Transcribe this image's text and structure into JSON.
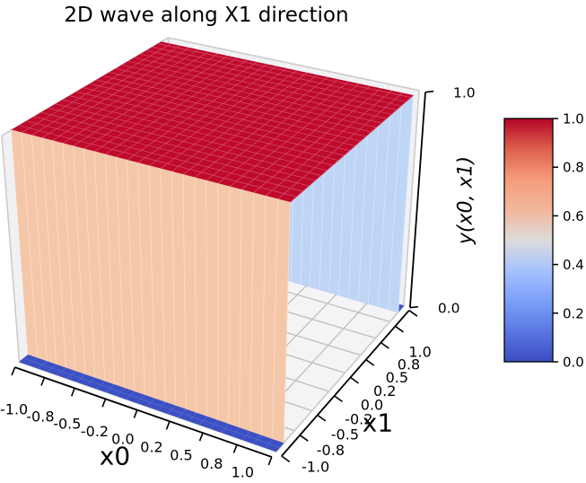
{
  "title": "2D wave along X1 direction",
  "chart_data": {
    "type": "surface",
    "title": "2D wave along X1 direction",
    "xlabel": "x0",
    "ylabel": "x1",
    "zlabel": "y(x0, x1)",
    "x_range": [
      -1.0,
      1.0
    ],
    "y_range": [
      -1.0,
      1.0
    ],
    "z_range": [
      0.0,
      1.0
    ],
    "x_ticks": {
      "positions": [
        -1,
        -0.75,
        -0.5,
        -0.25,
        0,
        0.25,
        0.5,
        0.75,
        1
      ],
      "labels": [
        "-1.0",
        "-0.8",
        "-0.5",
        "-0.2",
        "0.0",
        "0.2",
        "0.5",
        "0.8",
        "1.0"
      ]
    },
    "y_ticks": {
      "positions": [
        -1,
        -0.75,
        -0.5,
        -0.25,
        0,
        0.25,
        0.5,
        0.75,
        1
      ],
      "labels": [
        "-1.0",
        "-0.8",
        "-0.5",
        "-0.2",
        "0.0",
        "0.2",
        "0.5",
        "0.8",
        "1.0"
      ]
    },
    "z_ticks": {
      "positions": [
        0,
        1
      ],
      "labels": [
        "0.0",
        "1.0"
      ]
    },
    "surface": {
      "description": "Square wave along the x1 direction: y = 1 for |x1| < 0.9, y = 0 otherwise, constant along x0",
      "wave_threshold": 0.9,
      "z_high": 1.0,
      "z_low": 0.0,
      "grid_n": 50
    },
    "colormap": {
      "name": "coolwarm",
      "stops": [
        [
          0.0,
          "#3b4cc0"
        ],
        [
          0.125,
          "#5977e3"
        ],
        [
          0.25,
          "#7c9ff9"
        ],
        [
          0.375,
          "#a5c2fe"
        ],
        [
          0.5,
          "#dddcdb"
        ],
        [
          0.625,
          "#f2b69b"
        ],
        [
          0.75,
          "#f59c7d"
        ],
        [
          0.875,
          "#dd604d"
        ],
        [
          1.0,
          "#b40426"
        ]
      ]
    },
    "colorbar": {
      "tick_values": [
        0,
        0.2,
        0.4,
        0.6,
        0.8,
        1.0
      ],
      "tick_labels": [
        "0.0",
        "0.2",
        "0.4",
        "0.6",
        "0.8",
        "1.0"
      ]
    },
    "face_colors": {
      "top": "#bf0a2c",
      "top_mesh": "#d6506c",
      "floor": "#3c50c3",
      "floor_mesh": "#5c70d1",
      "front_wall": "#f5c7a9",
      "front_wall_mesh": "#fbdac5",
      "far_wall": "#bfd5f6",
      "far_wall_mesh": "#d9e6fc"
    },
    "frame_colors": {
      "pane": "#f1f1f3",
      "pane_grid": "#fbfbfb",
      "floor_grid": "#c1c1c4",
      "edge": "#cbcbcb",
      "axis": "#000000",
      "text": "#000000"
    }
  }
}
